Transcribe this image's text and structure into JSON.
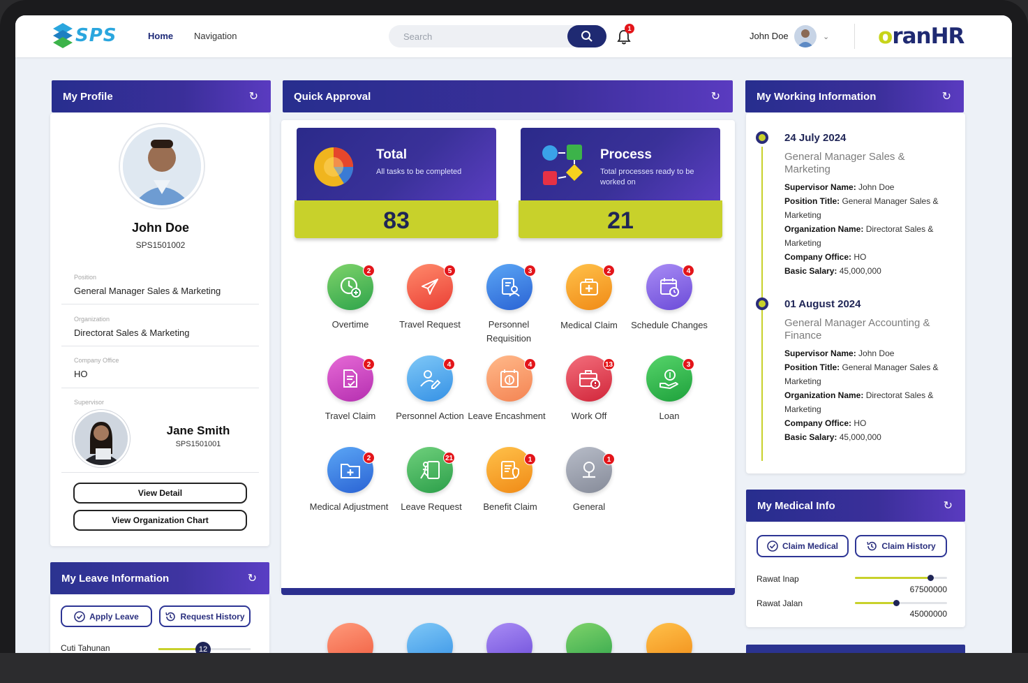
{
  "topbar": {
    "logo_text": "SPS",
    "nav": {
      "home": "Home",
      "navigation": "Navigation"
    },
    "search_placeholder": "Search",
    "notifications": "1",
    "user_name": "John Doe",
    "brand": {
      "prefix": "o",
      "suffix": "ranHR"
    }
  },
  "profile": {
    "title": "My Profile",
    "name": "John Doe",
    "id": "SPS1501002",
    "fields": [
      {
        "label": "Position",
        "value": "General Manager Sales & Marketing"
      },
      {
        "label": "Organization",
        "value": "Directorat Sales & Marketing"
      },
      {
        "label": "Company Office",
        "value": "HO"
      }
    ],
    "supervisor_label": "Supervisor",
    "supervisor_name": "Jane Smith",
    "supervisor_id": "SPS1501001",
    "btn_view_detail": "View Detail",
    "btn_view_org": "View Organization Chart"
  },
  "leave": {
    "title": "My Leave Information",
    "btn_apply": "Apply Leave",
    "btn_history": "Request History",
    "item_label": "Cuti Tahunan",
    "item_value": "12"
  },
  "approval": {
    "title": "Quick Approval",
    "total": {
      "title": "Total",
      "subtitle": "All tasks to be completed",
      "value": "83"
    },
    "process": {
      "title": "Process",
      "subtitle": "Total processes ready to be worked on",
      "value": "21"
    },
    "items": [
      {
        "label": "Overtime",
        "badge": "2"
      },
      {
        "label": "Travel Request",
        "badge": "5"
      },
      {
        "label": "Personnel Requisition",
        "badge": "3"
      },
      {
        "label": "Medical Claim",
        "badge": "2"
      },
      {
        "label": "Schedule Changes",
        "badge": "4"
      },
      {
        "label": "Travel Claim",
        "badge": "2"
      },
      {
        "label": "Personnel Action",
        "badge": "4"
      },
      {
        "label": "Leave Encashment",
        "badge": "4"
      },
      {
        "label": "Work Off",
        "badge": "13"
      },
      {
        "label": "Loan",
        "badge": "3"
      },
      {
        "label": "Medical Adjustment",
        "badge": "2"
      },
      {
        "label": "Leave Request",
        "badge": "21"
      },
      {
        "label": "Benefit Claim",
        "badge": "1"
      },
      {
        "label": "General",
        "badge": "1"
      }
    ]
  },
  "working": {
    "title": "My Working Information",
    "entries": [
      {
        "date": "24 July 2024",
        "position": "General Manager Sales & Marketing",
        "supervisor_label": "Supervisor Name:",
        "supervisor": "John Doe",
        "title_label": "Position Title:",
        "title_val": "General Manager Sales & Marketing",
        "org_label": "Organization Name:",
        "org": "Directorat Sales & Marketing",
        "office_label": "Company Office:",
        "office": "HO",
        "salary_label": "Basic Salary:",
        "salary": "45,000,000"
      },
      {
        "date": "01 August 2024",
        "position": "General Manager Accounting & Finance",
        "supervisor_label": "Supervisor Name:",
        "supervisor": "John Doe",
        "title_label": "Position Title:",
        "title_val": "General Manager Sales & Marketing",
        "org_label": "Organization Name:",
        "org": "Directorat Sales & Marketing",
        "office_label": "Company Office:",
        "office": "HO",
        "salary_label": "Basic Salary:",
        "salary": "45,000,000"
      }
    ]
  },
  "medical": {
    "title": "My Medical Info",
    "btn_claim": "Claim Medical",
    "btn_history": "Claim History",
    "items": [
      {
        "label": "Rawat Inap",
        "value": "67500000",
        "fill": 0.82
      },
      {
        "label": "Rawat Jalan",
        "value": "45000000",
        "fill": 0.45
      }
    ]
  },
  "colors": {
    "primary": "#1f2a72",
    "accent": "#c8d12b",
    "badge": "#e3151a"
  }
}
